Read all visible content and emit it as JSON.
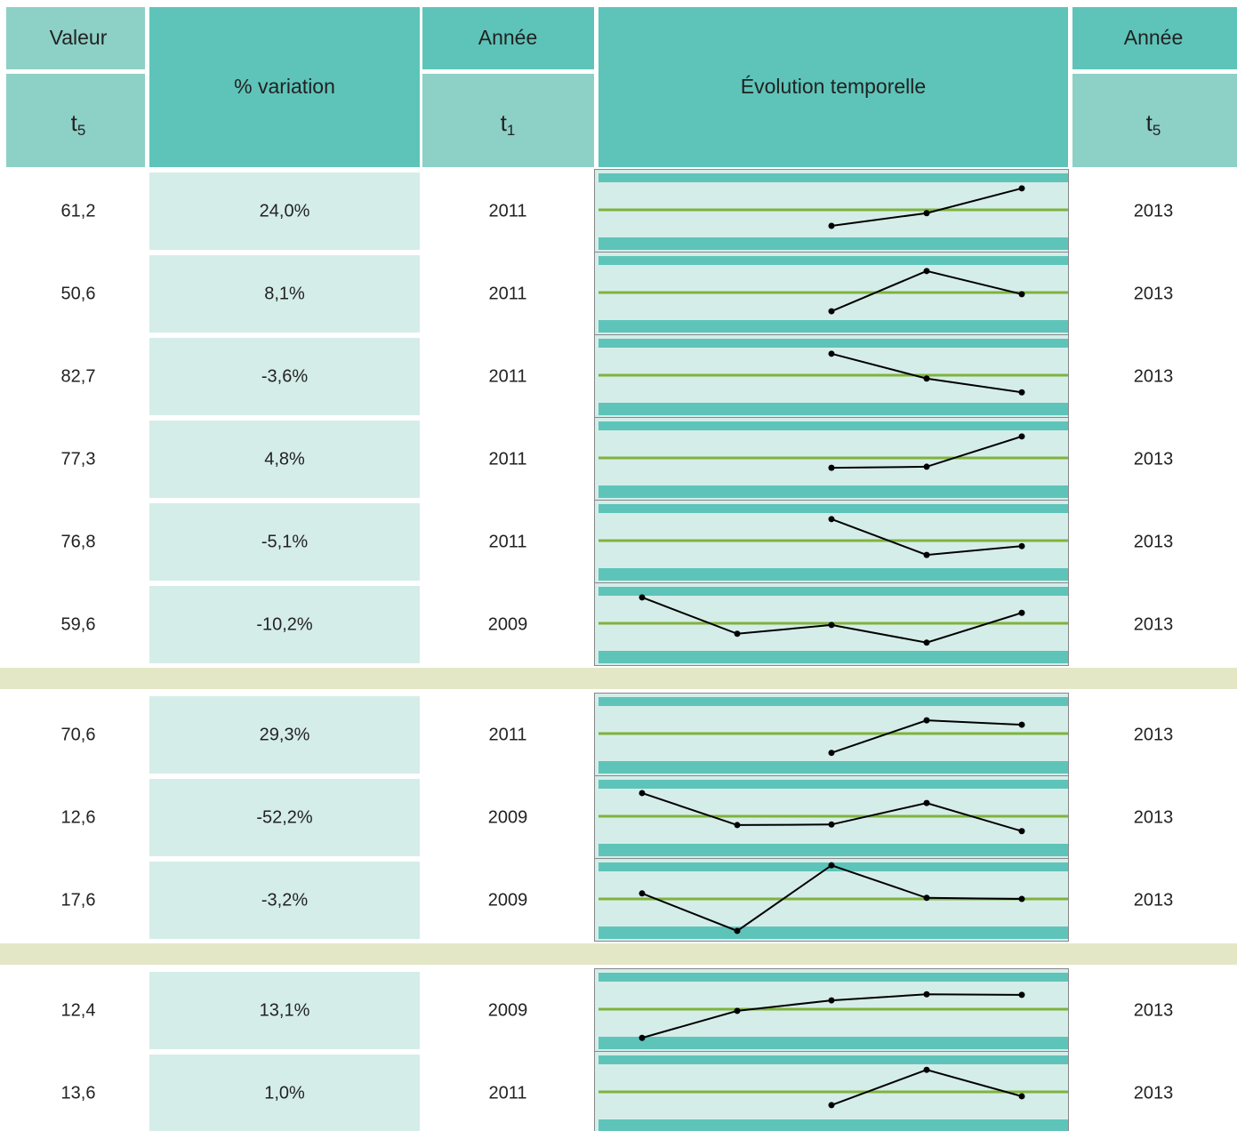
{
  "header": {
    "valeur": "Valeur",
    "t5": "t",
    "t5_sub": "5",
    "variation": "% variation",
    "annee_start": "Année",
    "t1": "t",
    "t1_sub": "1",
    "evolution": "Évolution temporelle",
    "annee_end": "Année",
    "t5_end": "t",
    "t5_end_sub": "5"
  },
  "trend_ylim": [
    0,
    100
  ],
  "groups": [
    {
      "rows": [
        {
          "value": "61,2",
          "variation": "24,0%",
          "start": "2011",
          "end": "2013",
          "trend": [
            null,
            null,
            21,
            44,
            89
          ]
        },
        {
          "value": "50,6",
          "variation": "8,1%",
          "start": "2011",
          "end": "2013",
          "trend": [
            null,
            null,
            16,
            89,
            47
          ]
        },
        {
          "value": "82,7",
          "variation": "-3,6%",
          "start": "2011",
          "end": "2013",
          "trend": [
            null,
            null,
            89,
            44,
            19
          ]
        },
        {
          "value": "77,3",
          "variation": "4,8%",
          "start": "2011",
          "end": "2013",
          "trend": [
            null,
            null,
            32,
            34,
            89
          ]
        },
        {
          "value": "76,8",
          "variation": "-5,1%",
          "start": "2011",
          "end": "2013",
          "trend": [
            null,
            null,
            89,
            24,
            40
          ]
        },
        {
          "value": "59,6",
          "variation": "-10,2%",
          "start": "2009",
          "end": "2013",
          "trend": [
            97,
            31,
            47,
            15,
            69
          ]
        }
      ]
    },
    {
      "rows": [
        {
          "value": "70,6",
          "variation": "29,3%",
          "start": "2011",
          "end": "2013",
          "trend": [
            null,
            null,
            15,
            74,
            66
          ]
        },
        {
          "value": "12,6",
          "variation": "-52,2%",
          "start": "2009",
          "end": "2013",
          "trend": [
            92,
            34,
            35,
            74,
            23
          ]
        },
        {
          "value": "17,6",
          "variation": "-3,2%",
          "start": "2009",
          "end": "2013",
          "trend": [
            60,
            -8,
            111,
            52,
            50
          ]
        }
      ]
    },
    {
      "rows": [
        {
          "value": "12,4",
          "variation": "13,1%",
          "start": "2009",
          "end": "2013",
          "trend": [
            -2,
            47,
            66,
            77,
            76
          ]
        },
        {
          "value": "13,6",
          "variation": "1,0%",
          "start": "2011",
          "end": "2013",
          "trend": [
            null,
            null,
            26,
            90,
            42
          ]
        }
      ]
    }
  ]
}
